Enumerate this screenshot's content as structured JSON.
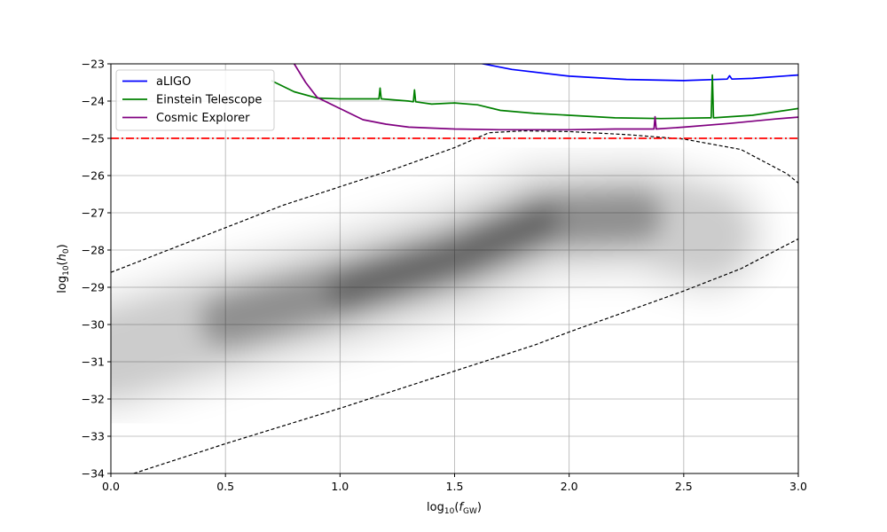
{
  "chart_data": {
    "type": "line",
    "xlabel": "log10(fGW)",
    "ylabel": "log10(h0)",
    "xlim": [
      0.0,
      3.0
    ],
    "ylim": [
      -34,
      -23
    ],
    "xticks": [
      0.0,
      0.5,
      1.0,
      1.5,
      2.0,
      2.5,
      3.0
    ],
    "xtick_labels": [
      "0.0",
      "0.5",
      "1.0",
      "1.5",
      "2.0",
      "2.5",
      "3.0"
    ],
    "yticks": [
      -23,
      -24,
      -25,
      -26,
      -27,
      -28,
      -29,
      -30,
      -31,
      -32,
      -33,
      -34
    ],
    "ytick_labels": [
      "−23",
      "−24",
      "−25",
      "−26",
      "−27",
      "−28",
      "−29",
      "−30",
      "−31",
      "−32",
      "−33",
      "−34"
    ],
    "grid": true,
    "legend_position": "top-left",
    "series": [
      {
        "name": "aLIGO",
        "color": "#0000ff",
        "x": [
          1.3,
          1.5,
          1.75,
          2.0,
          2.25,
          2.5,
          2.69,
          2.7,
          2.71,
          2.8,
          3.0
        ],
        "y": [
          -22.65,
          -22.85,
          -23.15,
          -23.33,
          -23.42,
          -23.45,
          -23.41,
          -23.32,
          -23.41,
          -23.39,
          -23.3
        ]
      },
      {
        "name": "Einstein Telescope",
        "color": "#008000",
        "x": [
          0.7,
          0.8,
          0.9,
          1.0,
          1.17,
          1.175,
          1.18,
          1.3,
          1.32,
          1.325,
          1.33,
          1.4,
          1.5,
          1.6,
          1.7,
          1.85,
          2.0,
          2.2,
          2.4,
          2.61,
          2.62,
          2.625,
          2.63,
          2.8,
          3.0
        ],
        "y": [
          -23.45,
          -23.75,
          -23.92,
          -23.94,
          -23.94,
          -23.65,
          -23.94,
          -24.0,
          -24.02,
          -23.7,
          -24.02,
          -24.08,
          -24.05,
          -24.1,
          -24.25,
          -24.33,
          -24.38,
          -24.45,
          -24.47,
          -24.45,
          -24.45,
          -23.3,
          -24.45,
          -24.38,
          -24.2
        ]
      },
      {
        "name": "Cosmic Explorer",
        "color": "#800080",
        "x": [
          0.8,
          0.85,
          0.9,
          1.0,
          1.1,
          1.2,
          1.3,
          1.5,
          1.7,
          2.0,
          2.2,
          2.37,
          2.375,
          2.38,
          2.5,
          2.7,
          2.9,
          3.0
        ],
        "y": [
          -23.0,
          -23.5,
          -23.9,
          -24.2,
          -24.5,
          -24.62,
          -24.7,
          -24.75,
          -24.77,
          -24.77,
          -24.75,
          -24.75,
          -24.42,
          -24.75,
          -24.7,
          -24.6,
          -24.48,
          -24.43
        ]
      }
    ],
    "threshold_line": {
      "y": -25,
      "color": "#ff0000",
      "style": "dash-dot"
    },
    "bounding_region": {
      "color": "#000000",
      "style": "dashed",
      "upper": {
        "x": [
          0.0,
          0.25,
          0.5,
          0.75,
          1.0,
          1.25,
          1.5,
          1.65,
          1.8,
          2.0,
          2.25,
          2.5,
          2.75,
          2.95,
          3.0
        ],
        "y": [
          -28.6,
          -28.0,
          -27.4,
          -26.8,
          -26.3,
          -25.8,
          -25.25,
          -24.85,
          -24.8,
          -24.82,
          -24.9,
          -25.02,
          -25.3,
          -25.95,
          -26.2
        ]
      },
      "lower": {
        "x": [
          0.1,
          0.5,
          1.0,
          1.5,
          1.85,
          2.0,
          2.25,
          2.5,
          2.75,
          3.0
        ],
        "y": [
          -34.0,
          -33.2,
          -32.25,
          -31.25,
          -30.55,
          -30.2,
          -29.65,
          -29.1,
          -28.5,
          -27.7
        ]
      }
    },
    "density_cloud": {
      "color": "#000000",
      "ridge_x": [
        0.0,
        0.5,
        1.0,
        1.5,
        1.9,
        2.3,
        2.6
      ],
      "ridge_y": [
        -30.8,
        -29.9,
        -29.1,
        -28.2,
        -27.2,
        -27.1,
        -27.6
      ]
    }
  }
}
